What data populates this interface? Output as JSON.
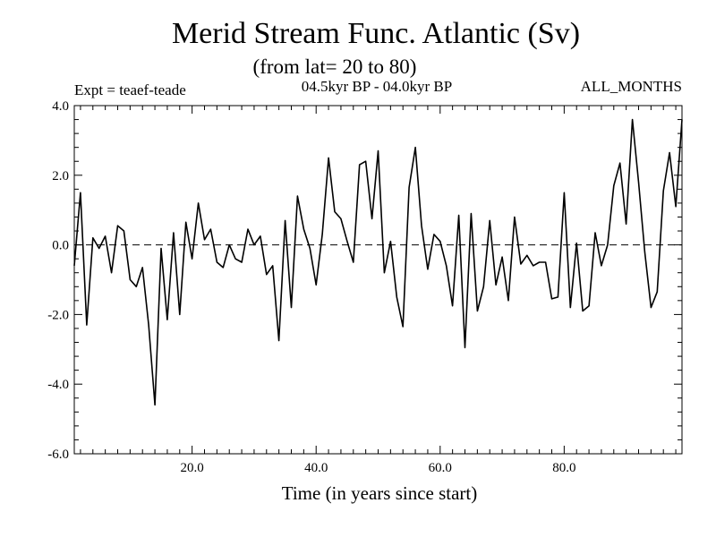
{
  "chart_data": {
    "type": "line",
    "title": "Merid Stream Func. Atlantic (Sv)",
    "subtitle": "(from lat= 20 to 80)",
    "expt_label": "Expt = teaef-teade",
    "period_label": "04.5kyr BP - 04.0kyr BP",
    "months_label": "ALL_MONTHS",
    "xlabel": "Time (in years since start)",
    "ylabel": "",
    "xlim": [
      1,
      99
    ],
    "ylim": [
      -6,
      4
    ],
    "x_ticks": [
      20,
      40,
      60,
      80
    ],
    "x_tick_labels": [
      "20.0",
      "40.0",
      "60.0",
      "80.0"
    ],
    "y_ticks": [
      -6,
      -4,
      -2,
      0,
      2,
      4
    ],
    "y_tick_labels": [
      "-6.0",
      "-4.0",
      "-2.0",
      "0.0",
      "2.0",
      "4.0"
    ],
    "zero_line": "dashed",
    "series": [
      {
        "name": "Merid Stream Func. Atlantic",
        "x": [
          1,
          2,
          3,
          4,
          5,
          6,
          7,
          8,
          9,
          10,
          11,
          12,
          13,
          14,
          15,
          16,
          17,
          18,
          19,
          20,
          21,
          22,
          23,
          24,
          25,
          26,
          27,
          28,
          29,
          30,
          31,
          32,
          33,
          34,
          35,
          36,
          37,
          38,
          39,
          40,
          41,
          42,
          43,
          44,
          45,
          46,
          47,
          48,
          49,
          50,
          51,
          52,
          53,
          54,
          55,
          56,
          57,
          58,
          59,
          60,
          61,
          62,
          63,
          64,
          65,
          66,
          67,
          68,
          69,
          70,
          71,
          72,
          73,
          74,
          75,
          76,
          77,
          78,
          79,
          80,
          81,
          82,
          83,
          84,
          85,
          86,
          87,
          88,
          89,
          90,
          91,
          92,
          93,
          94,
          95,
          96,
          97,
          98,
          99
        ],
        "values": [
          -0.6,
          1.5,
          -2.3,
          0.2,
          -0.1,
          0.25,
          -0.8,
          0.55,
          0.4,
          -1.0,
          -1.2,
          -0.65,
          -2.3,
          -4.6,
          -0.1,
          -2.15,
          0.35,
          -2.0,
          0.65,
          -0.4,
          1.2,
          0.15,
          0.45,
          -0.5,
          -0.65,
          0.0,
          -0.4,
          -0.5,
          0.45,
          0.0,
          0.25,
          -0.85,
          -0.6,
          -2.75,
          0.7,
          -1.8,
          1.4,
          0.45,
          -0.1,
          -1.15,
          0.3,
          2.5,
          0.95,
          0.75,
          0.1,
          -0.5,
          2.3,
          2.4,
          0.75,
          2.7,
          -0.8,
          0.1,
          -1.5,
          -2.35,
          1.65,
          2.8,
          0.55,
          -0.7,
          0.3,
          0.1,
          -0.6,
          -1.75,
          0.85,
          -2.95,
          0.9,
          -1.9,
          -1.2,
          0.7,
          -1.15,
          -0.35,
          -1.6,
          0.8,
          -0.55,
          -0.3,
          -0.6,
          -0.5,
          -0.5,
          -1.55,
          -1.5,
          1.5,
          -1.8,
          0.05,
          -1.9,
          -1.75,
          0.35,
          -0.6,
          0.0,
          1.7,
          2.35,
          0.6,
          3.6,
          1.8,
          -0.2,
          -1.8,
          -1.35,
          1.55,
          2.65,
          1.1,
          3.6
        ]
      }
    ]
  }
}
